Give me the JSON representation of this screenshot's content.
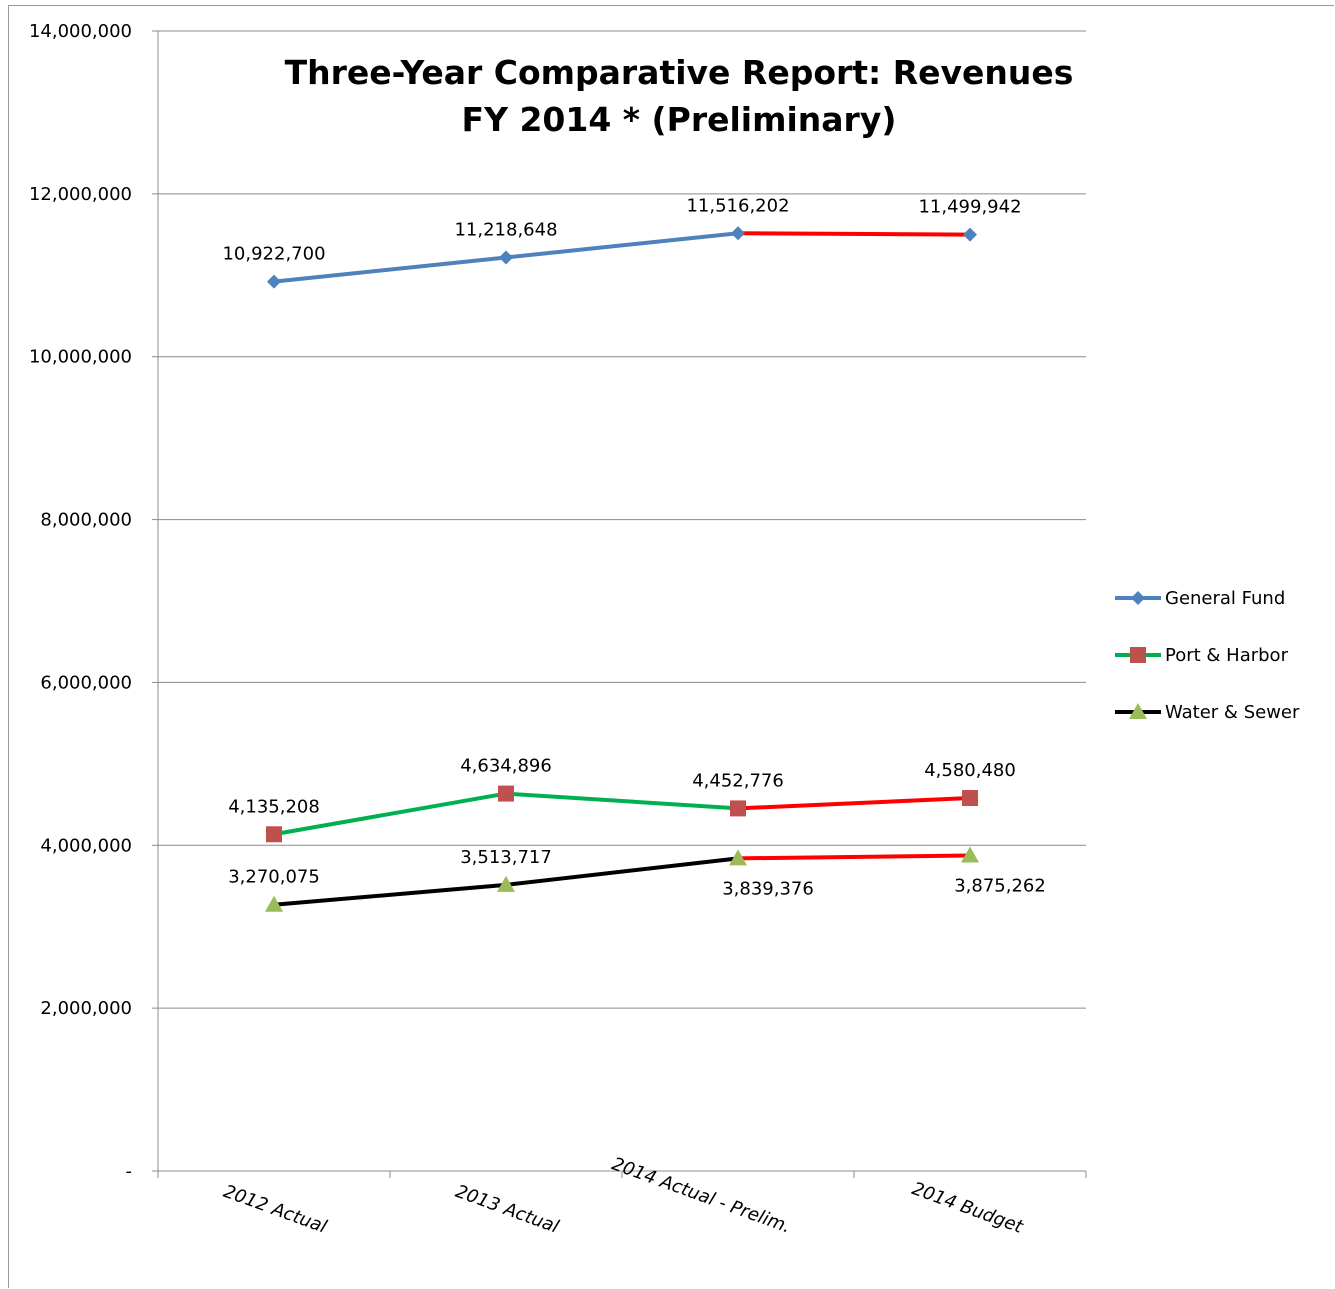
{
  "chart_data": {
    "type": "line",
    "title": "Three-Year Comparative Report: Revenues",
    "subtitle": "FY 2014 * (Preliminary)",
    "xlabel": "",
    "ylabel": "",
    "categories": [
      "2012 Actual",
      "2013 Actual",
      "2014 Actual - Prelim.",
      "2014 Budget"
    ],
    "ylim": [
      0,
      14000000
    ],
    "yticks": [
      0,
      2000000,
      4000000,
      6000000,
      8000000,
      10000000,
      12000000,
      14000000
    ],
    "ytick_labels": [
      "-",
      "2,000,000",
      "4,000,000",
      "6,000,000",
      "8,000,000",
      "10,000,000",
      "12,000,000",
      "14,000,000"
    ],
    "grid": true,
    "legend_position": "right",
    "highlight_color": "#ff0000",
    "series": [
      {
        "name": "General Fund",
        "values": [
          10922700,
          11218648,
          11516202,
          11499942
        ],
        "labels": [
          "10,922,700",
          "11,218,648",
          "11,516,202",
          "11,499,942"
        ],
        "color": "#4f81bd",
        "marker": "diamond",
        "marker_color": "#4f81bd",
        "label_placement": [
          "above",
          "above",
          "above",
          "above"
        ]
      },
      {
        "name": "Port & Harbor",
        "values": [
          4135208,
          4634896,
          4452776,
          4580480
        ],
        "labels": [
          "4,135,208",
          "4,634,896",
          "4,452,776",
          "4,580,480"
        ],
        "color": "#00b050",
        "marker": "square",
        "marker_color": "#c0504d",
        "label_placement": [
          "above",
          "above",
          "above",
          "above"
        ]
      },
      {
        "name": "Water & Sewer",
        "values": [
          3270075,
          3513717,
          3839376,
          3875262
        ],
        "labels": [
          "3,270,075",
          "3,513,717",
          "3,839,376",
          "3,875,262"
        ],
        "color": "#000000",
        "marker": "triangle",
        "marker_color": "#9bbb59",
        "label_placement": [
          "above",
          "above",
          "below",
          "below"
        ]
      }
    ]
  }
}
